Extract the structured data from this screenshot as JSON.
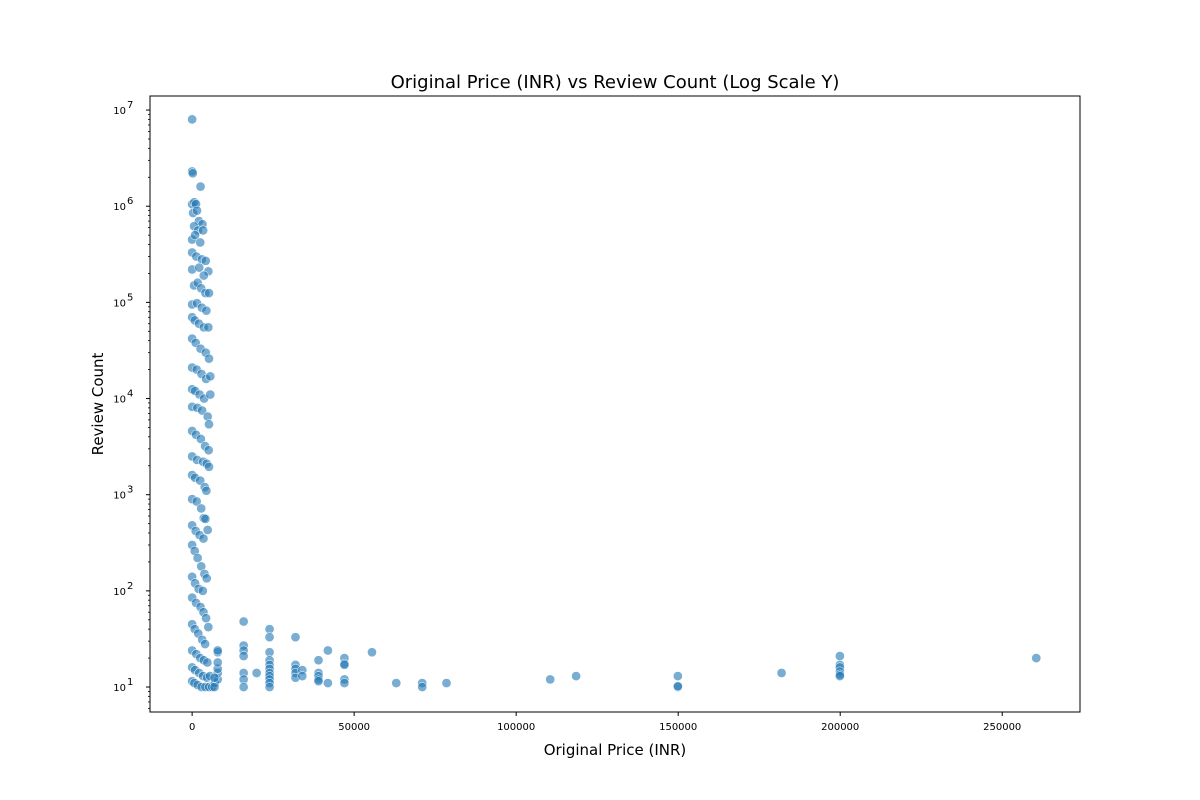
{
  "chart_data": {
    "type": "scatter",
    "title": "Original Price (INR) vs Review Count (Log Scale Y)",
    "xlabel": "Original Price (INR)",
    "ylabel": "Review Count",
    "xlim": [
      -13000,
      274000
    ],
    "ylim": [
      5.5,
      14000000
    ],
    "yscale": "log",
    "grid": false,
    "marker_color": "#1f77b4",
    "marker_alpha": 0.6,
    "x_ticks": [
      {
        "value": 0,
        "label": "0"
      },
      {
        "value": 50000,
        "label": "50000"
      },
      {
        "value": 100000,
        "label": "100000"
      },
      {
        "value": 150000,
        "label": "150000"
      },
      {
        "value": 200000,
        "label": "200000"
      },
      {
        "value": 250000,
        "label": "250000"
      }
    ],
    "y_ticks": [
      {
        "value": 10,
        "base": "10",
        "exp": "1"
      },
      {
        "value": 100,
        "base": "10",
        "exp": "2"
      },
      {
        "value": 1000,
        "base": "10",
        "exp": "3"
      },
      {
        "value": 10000,
        "base": "10",
        "exp": "4"
      },
      {
        "value": 100000,
        "base": "10",
        "exp": "5"
      },
      {
        "value": 1000000,
        "base": "10",
        "exp": "6"
      },
      {
        "value": 10000000,
        "base": "10",
        "exp": "7"
      }
    ],
    "series": [
      {
        "points": [
          [
            0,
            8000000
          ],
          [
            0,
            2300000
          ],
          [
            200,
            2200000
          ],
          [
            2600,
            1600000
          ],
          [
            0,
            1050000
          ],
          [
            700,
            1100000
          ],
          [
            1200,
            1050000
          ],
          [
            300,
            850000
          ],
          [
            1500,
            900000
          ],
          [
            2100,
            700000
          ],
          [
            3200,
            650000
          ],
          [
            600,
            620000
          ],
          [
            1800,
            560000
          ],
          [
            3400,
            560000
          ],
          [
            0,
            450000
          ],
          [
            900,
            500000
          ],
          [
            2500,
            420000
          ],
          [
            0,
            330000
          ],
          [
            1300,
            300000
          ],
          [
            3000,
            280000
          ],
          [
            4200,
            270000
          ],
          [
            5000,
            210000
          ],
          [
            0,
            220000
          ],
          [
            2200,
            230000
          ],
          [
            3600,
            190000
          ],
          [
            600,
            150000
          ],
          [
            1700,
            160000
          ],
          [
            2800,
            140000
          ],
          [
            4100,
            125000
          ],
          [
            5200,
            125000
          ],
          [
            0,
            95000
          ],
          [
            1500,
            98000
          ],
          [
            3000,
            88000
          ],
          [
            4400,
            82000
          ],
          [
            0,
            70000
          ],
          [
            800,
            65000
          ],
          [
            2100,
            60000
          ],
          [
            3600,
            55000
          ],
          [
            5000,
            55000
          ],
          [
            0,
            42000
          ],
          [
            1100,
            38000
          ],
          [
            2600,
            33000
          ],
          [
            4200,
            30000
          ],
          [
            5200,
            26000
          ],
          [
            0,
            21000
          ],
          [
            1400,
            20000
          ],
          [
            2900,
            18000
          ],
          [
            4300,
            16000
          ],
          [
            5600,
            17000
          ],
          [
            0,
            12500
          ],
          [
            900,
            12000
          ],
          [
            2300,
            11000
          ],
          [
            3700,
            10000
          ],
          [
            5600,
            11000
          ],
          [
            0,
            8200
          ],
          [
            1600,
            8000
          ],
          [
            3100,
            7500
          ],
          [
            4800,
            6500
          ],
          [
            5200,
            5400
          ],
          [
            0,
            4600
          ],
          [
            1200,
            4200
          ],
          [
            2700,
            3800
          ],
          [
            4000,
            3200
          ],
          [
            5100,
            2900
          ],
          [
            0,
            2500
          ],
          [
            1500,
            2300
          ],
          [
            3400,
            2200
          ],
          [
            4500,
            2100
          ],
          [
            5200,
            1950
          ],
          [
            0,
            1600
          ],
          [
            900,
            1500
          ],
          [
            2500,
            1400
          ],
          [
            3900,
            1200
          ],
          [
            4400,
            1100
          ],
          [
            0,
            900
          ],
          [
            1400,
            850
          ],
          [
            2800,
            720
          ],
          [
            3600,
            570
          ],
          [
            4100,
            560
          ],
          [
            0,
            480
          ],
          [
            1100,
            420
          ],
          [
            2300,
            380
          ],
          [
            3500,
            350
          ],
          [
            4800,
            430
          ],
          [
            0,
            300
          ],
          [
            800,
            260
          ],
          [
            1700,
            220
          ],
          [
            2800,
            180
          ],
          [
            3800,
            150
          ],
          [
            0,
            140
          ],
          [
            900,
            120
          ],
          [
            2000,
            105
          ],
          [
            3300,
            100
          ],
          [
            4500,
            135
          ],
          [
            0,
            85
          ],
          [
            1200,
            75
          ],
          [
            2600,
            68
          ],
          [
            3500,
            60
          ],
          [
            4300,
            52
          ],
          [
            0,
            45
          ],
          [
            800,
            40
          ],
          [
            1900,
            36
          ],
          [
            3100,
            31
          ],
          [
            4000,
            28
          ],
          [
            5000,
            42
          ],
          [
            0,
            24
          ],
          [
            1300,
            22
          ],
          [
            2500,
            20
          ],
          [
            3600,
            19
          ],
          [
            4700,
            18
          ],
          [
            0,
            16
          ],
          [
            900,
            15
          ],
          [
            2200,
            14
          ],
          [
            3400,
            13
          ],
          [
            4600,
            12.5
          ],
          [
            5500,
            13
          ],
          [
            0,
            11.5
          ],
          [
            700,
            11
          ],
          [
            1700,
            10.5
          ],
          [
            2900,
            10
          ],
          [
            4100,
            10
          ],
          [
            5200,
            10
          ],
          [
            6200,
            10
          ],
          [
            7000,
            11
          ],
          [
            7900,
            12
          ],
          [
            7900,
            14
          ],
          [
            7900,
            15.5
          ],
          [
            7900,
            18
          ],
          [
            7900,
            23
          ],
          [
            7900,
            24
          ],
          [
            6900,
            10
          ],
          [
            6900,
            12.5
          ],
          [
            15900,
            48
          ],
          [
            15900,
            27
          ],
          [
            15900,
            24
          ],
          [
            15900,
            21
          ],
          [
            15900,
            14
          ],
          [
            15900,
            12
          ],
          [
            15900,
            10
          ],
          [
            19900,
            14
          ],
          [
            23900,
            40
          ],
          [
            23900,
            33
          ],
          [
            23900,
            23
          ],
          [
            23900,
            19
          ],
          [
            23900,
            17
          ],
          [
            23900,
            15.5
          ],
          [
            23900,
            14
          ],
          [
            23900,
            13
          ],
          [
            23900,
            12
          ],
          [
            23900,
            11
          ],
          [
            23900,
            10
          ],
          [
            31900,
            33
          ],
          [
            31900,
            17
          ],
          [
            31900,
            15.5
          ],
          [
            31900,
            14
          ],
          [
            31900,
            12.5
          ],
          [
            34000,
            15
          ],
          [
            34000,
            13
          ],
          [
            39000,
            19
          ],
          [
            39000,
            14
          ],
          [
            39000,
            13
          ],
          [
            39000,
            12
          ],
          [
            39000,
            11.5
          ],
          [
            41900,
            24
          ],
          [
            41900,
            11
          ],
          [
            47000,
            20
          ],
          [
            47000,
            17.5
          ],
          [
            47000,
            17
          ],
          [
            47000,
            12
          ],
          [
            47000,
            11
          ],
          [
            55500,
            23
          ],
          [
            63000,
            11
          ],
          [
            71000,
            11
          ],
          [
            71000,
            10
          ],
          [
            78500,
            11
          ],
          [
            110500,
            12
          ],
          [
            118500,
            13
          ],
          [
            149900,
            13
          ],
          [
            149900,
            10
          ],
          [
            149900,
            10.2
          ],
          [
            181900,
            14
          ],
          [
            199900,
            21
          ],
          [
            199900,
            17
          ],
          [
            199900,
            16
          ],
          [
            199900,
            14.5
          ],
          [
            199900,
            13.5
          ],
          [
            199900,
            13
          ],
          [
            260500,
            20
          ]
        ]
      }
    ]
  }
}
